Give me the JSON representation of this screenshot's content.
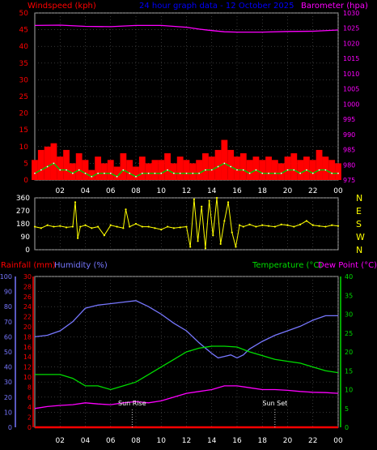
{
  "header": {
    "left_label": "Windspeed (kph)",
    "title": "24 hour graph data - 12 October 2025",
    "right_label": "Barometer (hpa)"
  },
  "colors": {
    "background": "#000000",
    "grid": "#5a5a5a",
    "wind_gust": "#ff0000",
    "wind_avg": "#00cc00",
    "wind_peak": "#ffffff",
    "barometer": "#ff00ff",
    "direction": "#ffff00",
    "rain": "#ff0000",
    "humidity": "#7777ff",
    "temperature": "#00dd00",
    "dew_point": "#ff00ff",
    "title": "#0000ff",
    "baro_axis": "#ff00ff",
    "wind_axis": "#ff0000"
  },
  "bottom_header": {
    "rain_label": "Rainfall (mm)",
    "humidity_label": "Humidity (%)",
    "temp_label": "Temperature (°C)",
    "dew_label": "Dew Point (°C)"
  },
  "sun": {
    "rise_label": "Sun Rise",
    "set_label": "Sun Set",
    "rise_hour": 7.7,
    "set_hour": 19.0
  },
  "chart_data": [
    {
      "type": "line",
      "title": "24 hour graph data - 12 October 2025",
      "x_ticks": [
        "02",
        "04",
        "06",
        "08",
        "10",
        "12",
        "14",
        "16",
        "18",
        "20",
        "22",
        "00"
      ],
      "wind_axis": {
        "label": "Windspeed (kph)",
        "ylim": [
          0,
          50
        ],
        "ticks": [
          0,
          5,
          10,
          15,
          20,
          25,
          30,
          35,
          40,
          45,
          50
        ]
      },
      "baro_axis": {
        "label": "Barometer (hpa)",
        "ylim": [
          975,
          1030
        ],
        "ticks": [
          975,
          980,
          985,
          990,
          995,
          1000,
          1005,
          1010,
          1015,
          1020,
          1025,
          1030
        ]
      },
      "series": [
        {
          "name": "Barometer (hpa)",
          "axis": "baro",
          "x": [
            0,
            2,
            4,
            6,
            8,
            10,
            12,
            13,
            14,
            15,
            16,
            18,
            20,
            22,
            24
          ],
          "values": [
            1025.9,
            1026.0,
            1025.6,
            1025.5,
            1025.9,
            1025.9,
            1025.3,
            1024.7,
            1024.2,
            1023.8,
            1023.7,
            1023.7,
            1023.9,
            1024.0,
            1024.4
          ]
        },
        {
          "axis": "wind",
          "role": "gust",
          "x": [
            0,
            0.5,
            1,
            1.5,
            2,
            2.5,
            3,
            3.5,
            4,
            4.5,
            5,
            5.5,
            6,
            6.5,
            7,
            7.5,
            8,
            8.5,
            9,
            9.5,
            10,
            10.5,
            11,
            11.5,
            12,
            12.5,
            13,
            13.5,
            14,
            14.5,
            15,
            15.5,
            16,
            16.5,
            17,
            17.5,
            18,
            18.5,
            19,
            19.5,
            20,
            20.5,
            21,
            21.5,
            22,
            22.5,
            23,
            23.5,
            24
          ],
          "values": [
            6,
            9,
            10,
            11,
            7,
            9,
            5,
            8,
            6,
            3,
            7,
            5,
            6,
            4,
            8,
            6,
            4,
            7,
            5,
            6,
            6,
            8,
            5,
            7,
            6,
            5,
            6,
            8,
            7,
            9,
            12,
            9,
            7,
            8,
            6,
            7,
            6,
            7,
            6,
            5,
            7,
            8,
            6,
            7,
            6,
            9,
            7,
            6,
            5
          ]
        },
        {
          "axis": "wind",
          "role": "average",
          "x": [
            0,
            0.5,
            1,
            1.5,
            2,
            2.5,
            3,
            3.5,
            4,
            4.5,
            5,
            5.5,
            6,
            6.5,
            7,
            7.5,
            8,
            8.5,
            9,
            9.5,
            10,
            10.5,
            11,
            11.5,
            12,
            12.5,
            13,
            13.5,
            14,
            14.5,
            15,
            15.5,
            16,
            16.5,
            17,
            17.5,
            18,
            18.5,
            19,
            19.5,
            20,
            20.5,
            21,
            21.5,
            22,
            22.5,
            23,
            23.5,
            24
          ],
          "values": [
            2,
            3,
            4,
            5,
            3,
            3,
            2,
            3,
            2,
            1,
            2,
            2,
            2,
            1,
            3,
            2,
            1,
            2,
            2,
            2,
            2,
            3,
            2,
            2,
            2,
            2,
            2,
            3,
            3,
            4,
            5,
            4,
            3,
            3,
            2,
            3,
            2,
            2,
            2,
            2,
            3,
            3,
            2,
            3,
            2,
            3,
            3,
            2,
            2
          ]
        }
      ]
    },
    {
      "type": "scatter",
      "x_ticks": [
        "02",
        "04",
        "06",
        "08",
        "10",
        "12",
        "14",
        "16",
        "18",
        "20",
        "22",
        "00"
      ],
      "y_ticks": [
        0,
        90,
        180,
        270,
        360
      ],
      "ylim": [
        0,
        360
      ],
      "compass_labels": [
        "N",
        "W",
        "S",
        "E",
        "N"
      ],
      "series": [
        {
          "axis": "direction",
          "x": [
            0,
            0.5,
            1,
            1.5,
            2,
            2.5,
            3,
            3.2,
            3.4,
            3.6,
            4,
            4.5,
            5,
            5.5,
            6,
            6.5,
            7,
            7.2,
            7.5,
            8,
            8.5,
            9,
            9.5,
            10,
            10.5,
            11,
            11.5,
            12,
            12.3,
            12.6,
            12.9,
            13.2,
            13.5,
            13.8,
            14.1,
            14.4,
            14.7,
            15,
            15.3,
            15.6,
            15.9,
            16.2,
            16.5,
            17,
            17.5,
            18,
            18.5,
            19,
            19.5,
            20,
            20.5,
            21,
            21.5,
            22,
            22.5,
            23,
            23.5,
            24
          ],
          "values": [
            160,
            150,
            170,
            160,
            165,
            155,
            160,
            330,
            80,
            160,
            170,
            150,
            160,
            100,
            170,
            160,
            150,
            280,
            160,
            180,
            160,
            160,
            150,
            140,
            160,
            150,
            155,
            160,
            20,
            350,
            60,
            300,
            10,
            340,
            100,
            360,
            40,
            200,
            330,
            120,
            20,
            170,
            160,
            175,
            160,
            170,
            165,
            160,
            175,
            170,
            160,
            175,
            200,
            170,
            165,
            160,
            170,
            165
          ]
        }
      ]
    },
    {
      "type": "line",
      "x_ticks": [
        "02",
        "04",
        "06",
        "08",
        "10",
        "12",
        "14",
        "16",
        "18",
        "20",
        "22",
        "00"
      ],
      "humidity_axis": {
        "label": "Humidity (%)",
        "ylim": [
          0,
          100
        ],
        "ticks": [
          0,
          10,
          20,
          30,
          40,
          50,
          60,
          70,
          80,
          90,
          100
        ]
      },
      "rain_axis": {
        "label": "Rainfall (mm)",
        "ylim": [
          0,
          30
        ],
        "ticks": [
          0,
          2,
          4,
          6,
          8,
          10,
          12,
          14,
          16,
          18,
          20,
          22,
          24,
          26,
          28,
          30
        ]
      },
      "temp_axis": {
        "label": "Temperature (°C)",
        "ylim": [
          0,
          40
        ],
        "ticks": [
          0,
          5,
          10,
          15,
          20,
          25,
          30,
          35,
          40
        ]
      },
      "series": [
        {
          "name": "Humidity (%)",
          "axis": "humidity",
          "x": [
            0,
            1,
            2,
            3,
            4,
            5,
            6,
            7,
            8,
            9,
            10,
            11,
            12,
            13,
            14,
            14.5,
            15,
            15.5,
            16,
            16.5,
            17,
            18,
            19,
            20,
            21,
            22,
            23,
            24
          ],
          "values": [
            60,
            61,
            64,
            70,
            79,
            81,
            82,
            83,
            84,
            80,
            75,
            69,
            64,
            56,
            49,
            46,
            47,
            48,
            46,
            48,
            52,
            57,
            61,
            64,
            67,
            71,
            74,
            74
          ]
        },
        {
          "name": "Temperature (°C)",
          "axis": "temp",
          "x": [
            0,
            1,
            2,
            3,
            4,
            5,
            6,
            7,
            8,
            9,
            10,
            11,
            12,
            13,
            14,
            15,
            16,
            17,
            18,
            19,
            20,
            21,
            22,
            23,
            24
          ],
          "values": [
            14,
            14,
            14,
            13,
            11,
            11,
            10,
            11,
            12,
            14,
            16,
            18,
            20,
            21,
            21.5,
            21.5,
            21.3,
            20,
            19,
            18,
            17.5,
            17,
            16,
            15,
            14.5
          ]
        },
        {
          "name": "Dew Point (°C)",
          "axis": "temp",
          "x": [
            0,
            1,
            2,
            3,
            4,
            5,
            6,
            7,
            8,
            9,
            10,
            11,
            12,
            13,
            14,
            15,
            16,
            17,
            18,
            19,
            20,
            21,
            22,
            23,
            24
          ],
          "values": [
            5,
            5.5,
            5.8,
            6,
            6.5,
            6.2,
            6,
            6.5,
            6.8,
            6.5,
            7,
            8,
            9,
            9.5,
            10,
            11,
            11,
            10.5,
            10,
            10,
            9.8,
            9.5,
            9.3,
            9.2,
            9
          ]
        },
        {
          "name": "Rainfall (mm)",
          "axis": "rain",
          "x": [
            0,
            24
          ],
          "values": [
            0,
            0
          ]
        }
      ]
    }
  ]
}
